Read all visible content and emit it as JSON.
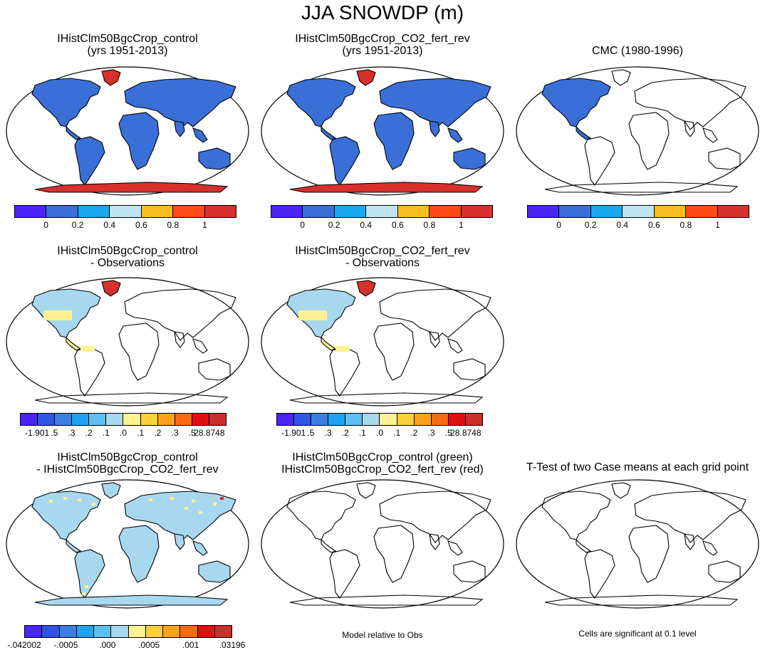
{
  "title": "JJA SNOWDP (m)",
  "panels": [
    {
      "title1": "IHistClm50BgcCrop_control",
      "title2": "(yrs 1951-2013)",
      "fill": "land_all",
      "colors": {
        "land": "#3a6fd8",
        "polar": "#d8302c"
      }
    },
    {
      "title1": "IHistClm50BgcCrop_CO2_fert_rev",
      "title2": "(yrs 1951-2013)",
      "fill": "land_all",
      "colors": {
        "land": "#3a6fd8",
        "polar": "#d8302c"
      }
    },
    {
      "title1": "CMC (1980-1996)",
      "title2": "",
      "fill": "north_america",
      "colors": {
        "land": "#3a6fd8"
      }
    },
    {
      "title1": "IHistClm50BgcCrop_control",
      "title2": "- Observations",
      "fill": "diff_na",
      "colors": {
        "light": "#a8d8f0",
        "yellow": "#fdf191",
        "red": "#d8302c"
      }
    },
    {
      "title1": "IHistClm50BgcCrop_CO2_fert_rev",
      "title2": "- Observations",
      "fill": "diff_na",
      "colors": {
        "light": "#a8d8f0",
        "yellow": "#fdf191",
        "red": "#d8302c"
      }
    },
    {
      "title1": "IHistClm50BgcCrop_control",
      "title2": "- IHistClm50BgcCrop_CO2_fert_rev",
      "fill": "diff_all",
      "colors": {
        "land": "#a8d8f0",
        "yellow": "#fdf191",
        "red": "#d8302c"
      }
    },
    {
      "title1": "IHistClm50BgcCrop_control (green)",
      "title2": "IHistClm50BgcCrop_CO2_fert_rev (red)",
      "fill": "none"
    },
    {
      "title1": "T-Test of two Case means at each grid point",
      "title2": "",
      "fill": "none"
    }
  ],
  "colorbars": {
    "snow": {
      "colors": [
        "#4b25f5",
        "#3a6fd8",
        "#1aa8f0",
        "#c0e4f4",
        "#fbbd22",
        "#ff4a16",
        "#d8302c"
      ],
      "labels": [
        "0",
        "0.2",
        "0.4",
        "0.6",
        "0.8",
        "1"
      ]
    },
    "diff": {
      "colors": [
        "#4b25f5",
        "#2f55e6",
        "#3a80e4",
        "#20a2f2",
        "#5ec0f0",
        "#a8d8f0",
        "#fdf191",
        "#fbd03a",
        "#fba21a",
        "#f86a14",
        "#e01010",
        "#c8302c"
      ],
      "labels": [
        "-1.901",
        ".5",
        ".3",
        ".2",
        ".1",
        ".0",
        ".1",
        ".2",
        ".3",
        ".5",
        "28.8748"
      ]
    },
    "ttest": {
      "colors": [
        "#4b25f5",
        "#2f55e6",
        "#3a80e4",
        "#20a2f2",
        "#5ec0f0",
        "#a8d8f0",
        "#fdf191",
        "#fbd03a",
        "#fba21a",
        "#f86a14",
        "#e01010",
        "#c8302c"
      ],
      "labels": [
        "-.042002",
        "-.0005",
        ".000",
        ".0005",
        ".001",
        ".03196"
      ]
    }
  },
  "notes": {
    "model_relative": "Model relative to Obs",
    "significance": "Cells are significant at 0.1 level"
  }
}
